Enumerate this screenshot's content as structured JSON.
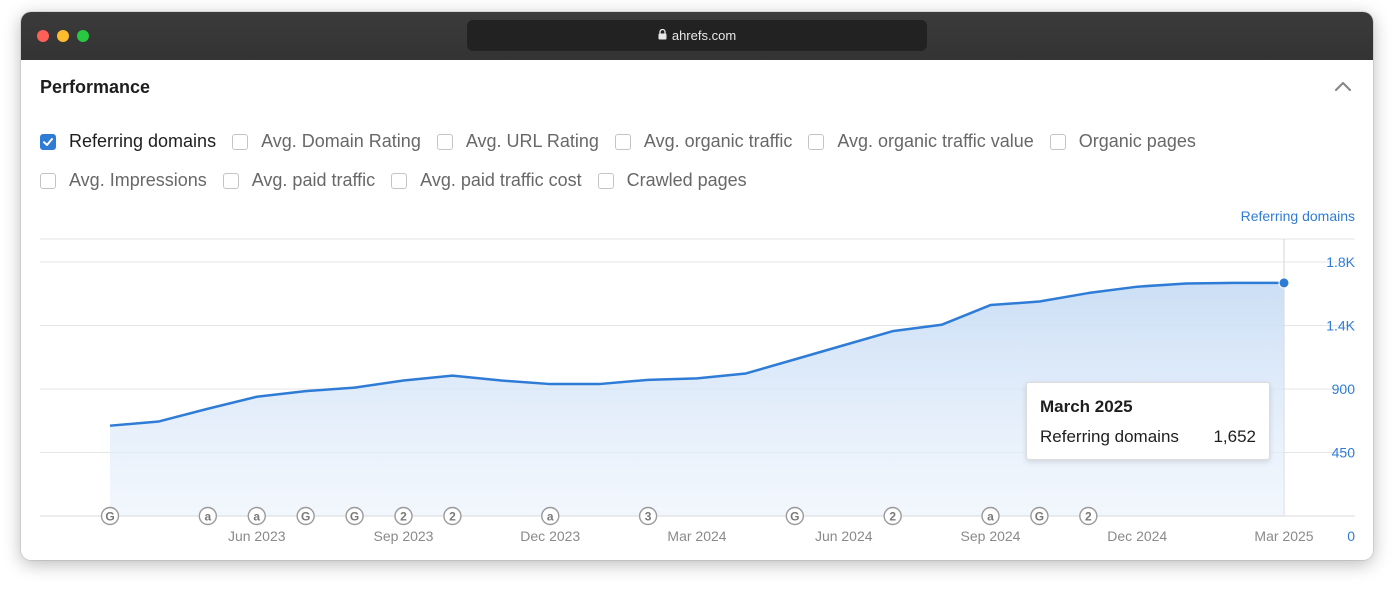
{
  "browser": {
    "url": "ahrefs.com"
  },
  "panel": {
    "title": "Performance"
  },
  "metrics_row1": [
    {
      "label": "Referring domains",
      "checked": true
    },
    {
      "label": "Avg. Domain Rating",
      "checked": false
    },
    {
      "label": "Avg. URL Rating",
      "checked": false
    },
    {
      "label": "Avg. organic traffic",
      "checked": false
    },
    {
      "label": "Avg. organic traffic value",
      "checked": false
    },
    {
      "label": "Organic pages",
      "checked": false
    }
  ],
  "metrics_row2": [
    {
      "label": "Avg. Impressions",
      "checked": false
    },
    {
      "label": "Avg. paid traffic",
      "checked": false
    },
    {
      "label": "Avg. paid traffic cost",
      "checked": false
    },
    {
      "label": "Crawled pages",
      "checked": false
    }
  ],
  "tooltip": {
    "title": "March 2025",
    "series": "Referring domains",
    "value": "1,652"
  },
  "colors": {
    "accent": "#2f7cd6",
    "area": "#dbe8f9"
  },
  "chart_data": {
    "type": "area",
    "series_label": "Referring domains",
    "x": [
      "Mar 2023",
      "Apr 2023",
      "May 2023",
      "Jun 2023",
      "Jul 2023",
      "Aug 2023",
      "Sep 2023",
      "Oct 2023",
      "Nov 2023",
      "Dec 2023",
      "Jan 2024",
      "Feb 2024",
      "Mar 2024",
      "Apr 2024",
      "May 2024",
      "Jun 2024",
      "Jul 2024",
      "Aug 2024",
      "Sep 2024",
      "Oct 2024",
      "Nov 2024",
      "Dec 2024",
      "Jan 2025",
      "Feb 2025",
      "Mar 2025"
    ],
    "values": [
      640,
      670,
      760,
      845,
      885,
      910,
      960,
      995,
      960,
      935,
      935,
      965,
      975,
      1010,
      1110,
      1210,
      1310,
      1355,
      1495,
      1520,
      1580,
      1625,
      1648,
      1652,
      1652
    ],
    "xtick_labels": [
      "Jun 2023",
      "Sep 2023",
      "Dec 2023",
      "Mar 2024",
      "Jun 2024",
      "Sep 2024",
      "Dec 2024",
      "Mar 2025"
    ],
    "xtick_index": [
      3,
      6,
      9,
      12,
      15,
      18,
      21,
      24
    ],
    "ytick_labels": [
      "1.8K",
      "1.4K",
      "900",
      "450",
      "0"
    ],
    "ytick_values": [
      1800,
      1350,
      900,
      450,
      0
    ],
    "ylim": [
      0,
      1800
    ],
    "annotations": [
      {
        "index": 0,
        "label": "G"
      },
      {
        "index": 2,
        "label": "a"
      },
      {
        "index": 3,
        "label": "a"
      },
      {
        "index": 4,
        "label": "G"
      },
      {
        "index": 5,
        "label": "G"
      },
      {
        "index": 6,
        "label": "2"
      },
      {
        "index": 7,
        "label": "2"
      },
      {
        "index": 9,
        "label": "a"
      },
      {
        "index": 11,
        "label": "3"
      },
      {
        "index": 14,
        "label": "G"
      },
      {
        "index": 16,
        "label": "2"
      },
      {
        "index": 18,
        "label": "a"
      },
      {
        "index": 19,
        "label": "G"
      },
      {
        "index": 20,
        "label": "2"
      }
    ],
    "grid": true
  }
}
